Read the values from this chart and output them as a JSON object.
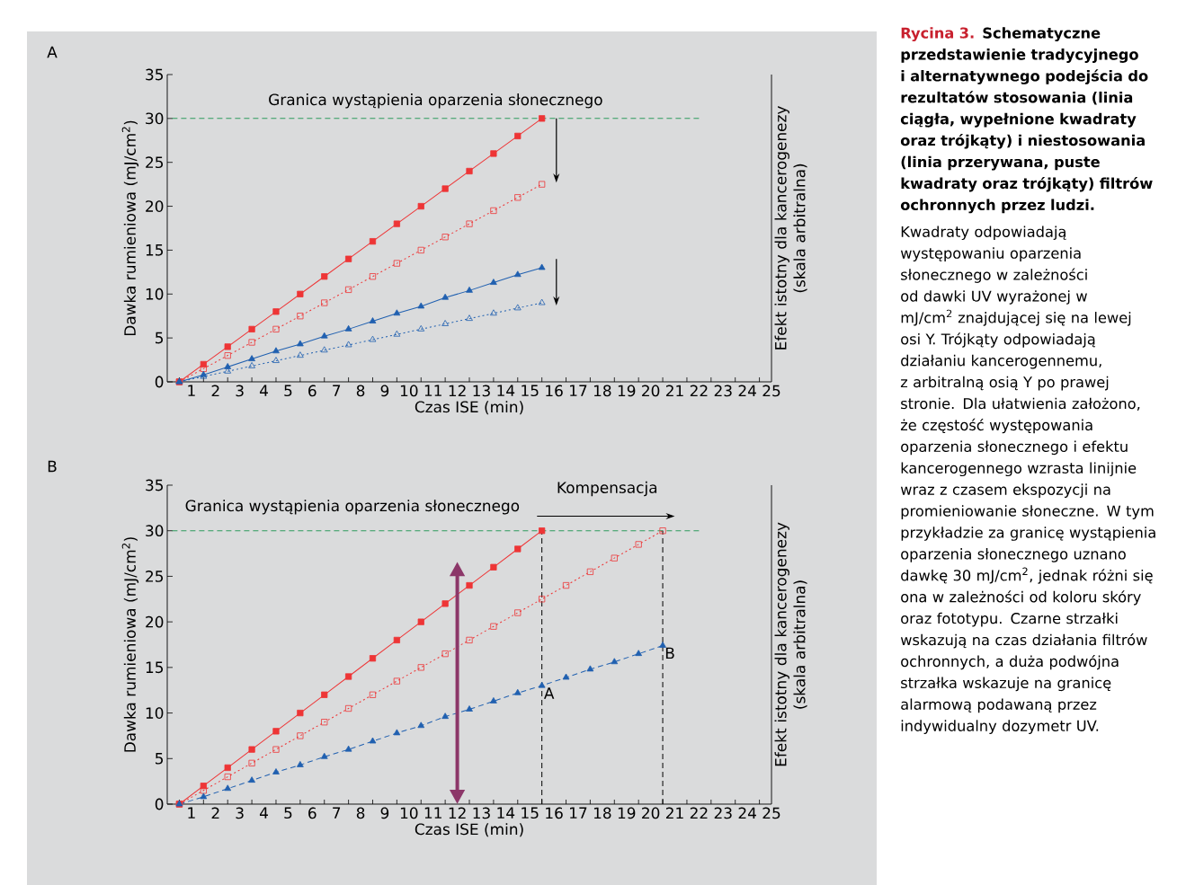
{
  "chart_data": [
    {
      "type": "line",
      "title": "A",
      "xlabel": "Czas ISE (min)",
      "ylabel": "Dawka rumieniowa (mJ/cm$^{2}$)",
      "y2label": "Efekt istotny dla kancerogenezy (skala arbitralna)",
      "xlim": [
        0,
        25
      ],
      "ylim": [
        0,
        35
      ],
      "xticks": [
        1,
        2,
        3,
        4,
        5,
        6,
        7,
        8,
        9,
        10,
        11,
        12,
        13,
        14,
        15,
        16,
        17,
        18,
        19,
        20,
        21,
        22,
        23,
        24,
        25,
        {
          "value": 0.5,
          "label": null
        },
        {
          "value": 1.5,
          "label": null
        },
        {
          "value": 2.5,
          "label": null
        },
        {
          "value": 3.5,
          "label": null
        },
        {
          "value": 4.5,
          "label": null
        },
        {
          "value": 5.5,
          "label": null
        },
        {
          "value": 6.5,
          "label": null
        },
        {
          "value": 7.5,
          "label": null
        },
        {
          "value": 8.5,
          "label": null
        },
        {
          "value": 9.5,
          "label": null
        },
        {
          "value": 10.5,
          "label": null
        },
        {
          "value": 11.5,
          "label": null
        },
        {
          "value": 12.5,
          "label": null
        },
        {
          "value": 13.5,
          "label": null
        },
        {
          "value": 14.5,
          "label": null
        },
        {
          "value": 15.5,
          "label": null
        },
        {
          "value": 16.5,
          "label": null
        },
        {
          "value": 17.5,
          "label": null
        },
        {
          "value": 18.5,
          "label": null
        },
        {
          "value": 19.5,
          "label": null
        },
        {
          "value": 20.5,
          "label": null
        },
        {
          "value": 21.5,
          "label": null
        },
        {
          "value": 22.5,
          "label": null
        },
        {
          "value": 23.5,
          "label": null
        },
        {
          "value": 24.5,
          "label": null
        }
      ],
      "yticks": [
        0,
        5,
        10,
        15,
        20,
        25,
        30,
        35
      ],
      "ref_lines": [
        {
          "axis": "y",
          "value": 30,
          "label": "Granica wystąpienia oparzenia słonecznego",
          "color": "#2e9a5c",
          "line_style": "dashed"
        }
      ],
      "series": [
        {
          "color": "#ee3536",
          "marker": "square",
          "line_style": "solid",
          "x": [
            0.5,
            1.5,
            2.5,
            3.5,
            4.5,
            5.5,
            6.5,
            7.5,
            8.5,
            9.5,
            10.5,
            11.5,
            12.5,
            13.5,
            14.5,
            15.5
          ],
          "values": [
            0,
            2,
            4,
            6,
            8,
            10,
            12,
            14,
            16,
            18,
            20,
            22,
            24,
            26,
            28,
            30
          ]
        },
        {
          "color": "#ee3536",
          "marker": "square",
          "line_style": "dotted",
          "x": [
            0.5,
            1.5,
            2.5,
            3.5,
            4.5,
            5.5,
            6.5,
            7.5,
            8.5,
            9.5,
            10.5,
            11.5,
            12.5,
            13.5,
            14.5,
            15.5
          ],
          "values": [
            0,
            1.5,
            3,
            4.5,
            6,
            7.5,
            9,
            10.5,
            12,
            13.5,
            15,
            16.5,
            18,
            19.5,
            21,
            22.5
          ]
        },
        {
          "color": "#2060b0",
          "marker": "triangle",
          "line_style": "solid",
          "x": [
            0.5,
            1.5,
            2.5,
            3.5,
            4.5,
            5.5,
            6.5,
            7.5,
            8.5,
            9.5,
            10.5,
            11.5,
            12.5,
            13.5,
            14.5,
            15.5
          ],
          "values": [
            0,
            0.8,
            1.7,
            2.6,
            3.5,
            4.3,
            5.2,
            6.0,
            6.9,
            7.8,
            8.6,
            9.6,
            10.4,
            11.3,
            12.2,
            13.0
          ]
        },
        {
          "color": "#2060b0",
          "marker": "triangle",
          "line_style": "dotted",
          "x": [
            0.5,
            1.5,
            2.5,
            3.5,
            4.5,
            5.5,
            6.5,
            7.5,
            8.5,
            9.5,
            10.5,
            11.5,
            12.5,
            13.5,
            14.5,
            15.5
          ],
          "values": [
            0,
            0.6,
            1.2,
            1.8,
            2.4,
            3.0,
            3.6,
            4.2,
            4.8,
            5.4,
            6.0,
            6.6,
            7.2,
            7.8,
            8.4,
            9.0
          ]
        }
      ]
    },
    {
      "type": "line",
      "title": "B",
      "xlabel": "Czas ISE (min)",
      "ylabel": "Dawka rumieniowa (mJ/cm$^{2}$)",
      "y2label": "Efekt istotny dla kancerogenezy (skala arbitralna)",
      "xlim": [
        0,
        25
      ],
      "ylim": [
        0,
        35
      ],
      "xticks": [
        1,
        2,
        3,
        4,
        5,
        6,
        7,
        8,
        9,
        10,
        11,
        12,
        13,
        14,
        15,
        16,
        17,
        18,
        19,
        20,
        21,
        22,
        23,
        24,
        25,
        {
          "value": 0.5,
          "label": null
        },
        {
          "value": 1.5,
          "label": null
        },
        {
          "value": 2.5,
          "label": null
        },
        {
          "value": 3.5,
          "label": null
        },
        {
          "value": 4.5,
          "label": null
        },
        {
          "value": 5.5,
          "label": null
        },
        {
          "value": 6.5,
          "label": null
        },
        {
          "value": 7.5,
          "label": null
        },
        {
          "value": 8.5,
          "label": null
        },
        {
          "value": 9.5,
          "label": null
        },
        {
          "value": 10.5,
          "label": null
        },
        {
          "value": 11.5,
          "label": null
        },
        {
          "value": 12.5,
          "label": null
        },
        {
          "value": 13.5,
          "label": null
        },
        {
          "value": 14.5,
          "label": null
        },
        {
          "value": 15.5,
          "label": null
        },
        {
          "value": 16.5,
          "label": null
        },
        {
          "value": 17.5,
          "label": null
        },
        {
          "value": 18.5,
          "label": null
        },
        {
          "value": 19.5,
          "label": null
        },
        {
          "value": 20.5,
          "label": null
        },
        {
          "value": 21.5,
          "label": null
        },
        {
          "value": 22.5,
          "label": null
        },
        {
          "value": 23.5,
          "label": null
        },
        {
          "value": 24.5,
          "label": null
        }
      ],
      "yticks": [
        0,
        5,
        10,
        15,
        20,
        25,
        30,
        35
      ],
      "ref_lines": [
        {
          "axis": "y",
          "value": 30,
          "label": "Granica wystąpienia oparzenia słonecznego",
          "color": "#2e9a5c",
          "line_style": "dashed"
        },
        {
          "axis": "x",
          "value": 15.5,
          "color": "#000000",
          "line_style": "dashed"
        },
        {
          "axis": "x",
          "value": 20.5,
          "color": "#000000",
          "line_style": "dashed"
        }
      ],
      "annotations": [
        "Kompensacja",
        {
          "text": "A",
          "x": 15.5,
          "y": 13.0
        },
        {
          "text": "B",
          "x": 20.5,
          "y": 17.4
        }
      ],
      "series": [
        {
          "color": "#ee3536",
          "marker": "square",
          "line_style": "solid",
          "x": [
            0.5,
            1.5,
            2.5,
            3.5,
            4.5,
            5.5,
            6.5,
            7.5,
            8.5,
            9.5,
            10.5,
            11.5,
            12.5,
            13.5,
            14.5,
            15.5
          ],
          "values": [
            0,
            2,
            4,
            6,
            8,
            10,
            12,
            14,
            16,
            18,
            20,
            22,
            24,
            26,
            28,
            30
          ]
        },
        {
          "color": "#ee3536",
          "marker": "square",
          "line_style": "dotted",
          "x": [
            0.5,
            1.5,
            2.5,
            3.5,
            4.5,
            5.5,
            6.5,
            7.5,
            8.5,
            9.5,
            10.5,
            11.5,
            12.5,
            13.5,
            14.5,
            15.5,
            16.5,
            17.5,
            18.5,
            19.5,
            20.5
          ],
          "values": [
            0,
            1.5,
            3,
            4.5,
            6,
            7.5,
            9,
            10.5,
            12,
            13.5,
            15,
            16.5,
            18,
            19.5,
            21,
            22.5,
            24,
            25.5,
            27,
            28.5,
            30
          ]
        },
        {
          "color": "#2060b0",
          "marker": "triangle",
          "line_style": "dashed",
          "x": [
            0.5,
            1.5,
            2.5,
            3.5,
            4.5,
            5.5,
            6.5,
            7.5,
            8.5,
            9.5,
            10.5,
            11.5,
            12.5,
            13.5,
            14.5,
            15.5,
            16.5,
            17.5,
            18.5,
            19.5,
            20.5
          ],
          "values": [
            0,
            0.8,
            1.7,
            2.6,
            3.5,
            4.3,
            5.2,
            6.0,
            6.9,
            7.8,
            8.6,
            9.6,
            10.4,
            11.3,
            12.2,
            13.0,
            13.9,
            14.8,
            15.6,
            16.5,
            17.4
          ]
        }
      ]
    },
    {
      "type": "other",
      "title": "Rycina 3.",
      "subtitle": "Schematyczne przedstawienie tradycyjnego i alternatywnego podejścia do rezultatów stosowania (linia ciągła, wypełnione kwadraty oraz trójkąty) i niestosowania (linia przerywana, puste kwadraty oraz trójkąty) filtrów ochronnych przez ludzi.",
      "annotations": [
        "Kwadraty odpowiadają występowaniu oparzenia słonecznego w zależności od dawki UV wyrażonej w mJ/cm$^{2}$ znajdującej się na lewej osi Y. Trójkąty odpowiadają działaniu kancerogennemu, z arbitralną osią Y po prawej stronie. Dla ułatwienia założono, że częstość występowania oparzenia słonecznego i efektu kancerogennego wzrasta linijnie wraz z czasem ekspozycji na promieniowanie słoneczne. W tym przykładzie za granicę wystąpienia oparzenia słonecznego uznano dawkę 30 mJ/cm$^{2}$, jednak różni się ona w zależności od koloru skóry oraz fototypu. Czarne strzałki wskazują na czas działania filtrów ochronnych, a duża podwójna strzałka wskazuje na granicę alarmową podawaną przez indywidualny dozymetr UV."
      ]
    }
  ]
}
